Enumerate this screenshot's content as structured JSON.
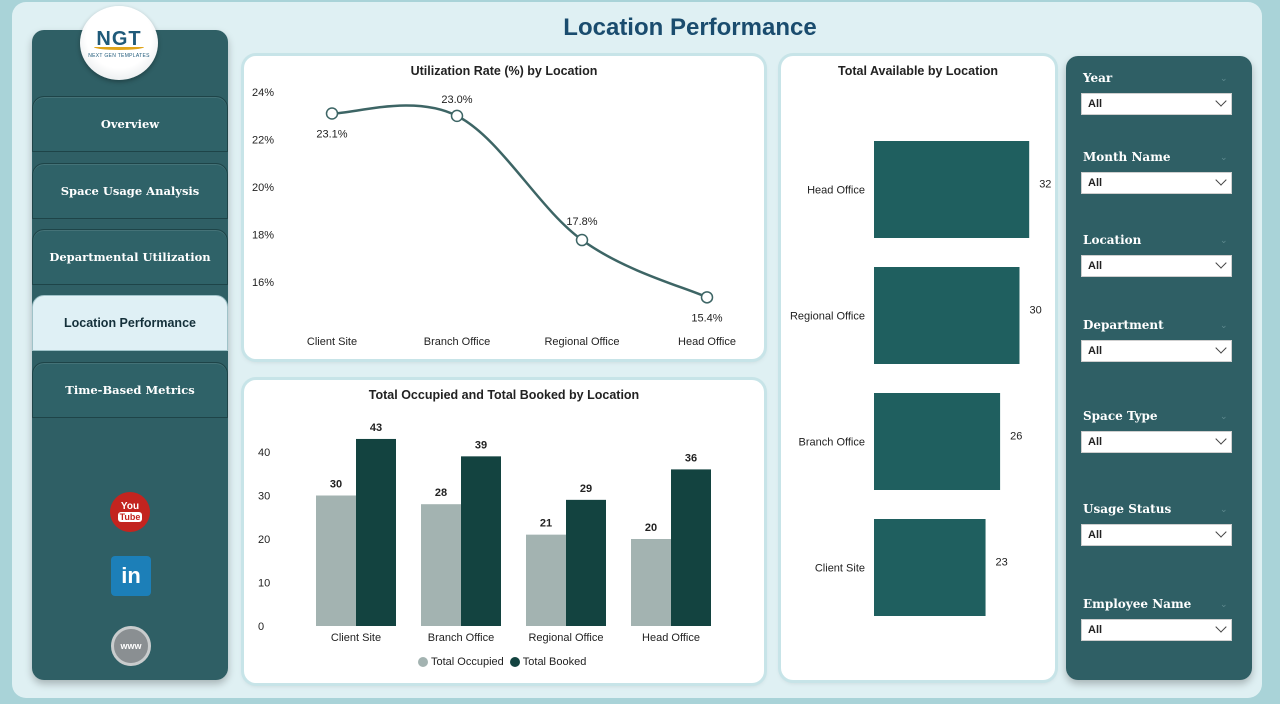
{
  "page": {
    "title": "Location Performance"
  },
  "logo": {
    "text": "NGT",
    "subtitle": "NEXT GEN TEMPLATES"
  },
  "nav": {
    "items": [
      {
        "label": "Overview"
      },
      {
        "label": "Space Usage Analysis"
      },
      {
        "label": "Departmental Utilization"
      },
      {
        "label": "Location Performance",
        "active": true
      },
      {
        "label": "Time-Based Metrics"
      }
    ]
  },
  "social": {
    "youtube_top": "You",
    "youtube_bottom": "Tube",
    "linkedin": "in",
    "web": "www"
  },
  "filters": [
    {
      "label": "Year",
      "value": "All"
    },
    {
      "label": "Month Name",
      "value": "All"
    },
    {
      "label": "Location",
      "value": "All"
    },
    {
      "label": "Department",
      "value": "All"
    },
    {
      "label": "Space Type",
      "value": "All"
    },
    {
      "label": "Usage Status",
      "value": "All"
    },
    {
      "label": "Employee Name",
      "value": "All"
    }
  ],
  "colors": {
    "nav_bg": "#2f5f65",
    "accent_dark": "#134340",
    "accent_teal": "#1f5f5f",
    "accent_grey": "#a3b3b1",
    "line": "#3d6565",
    "title": "#1a4c6e"
  },
  "chart_data": [
    {
      "type": "line",
      "title": "Utilization Rate (%) by Location",
      "categories": [
        "Client Site",
        "Branch Office",
        "Regional Office",
        "Head Office"
      ],
      "values": [
        23.1,
        23.0,
        17.8,
        15.4
      ],
      "value_labels": [
        "23.1%",
        "23.0%",
        "17.8%",
        "15.4%"
      ],
      "yticks": [
        "24%",
        "22%",
        "20%",
        "18%",
        "16%"
      ],
      "ylim": [
        16,
        24
      ]
    },
    {
      "type": "bar",
      "orientation": "horizontal",
      "title": "Total Available by Location",
      "categories": [
        "Head Office",
        "Regional Office",
        "Branch Office",
        "Client Site"
      ],
      "values": [
        32,
        30,
        26,
        23
      ]
    },
    {
      "type": "bar",
      "title": "Total Occupied and Total Booked by Location",
      "categories": [
        "Client Site",
        "Branch Office",
        "Regional Office",
        "Head Office"
      ],
      "series": [
        {
          "name": "Total Occupied",
          "values": [
            30,
            28,
            21,
            20
          ],
          "color": "#a3b3b1"
        },
        {
          "name": "Total Booked",
          "values": [
            43,
            39,
            29,
            36
          ],
          "color": "#134340"
        }
      ],
      "yticks": [
        "40",
        "30",
        "20",
        "10",
        "0"
      ],
      "ylim": [
        0,
        40
      ],
      "legend": "bottom"
    }
  ]
}
